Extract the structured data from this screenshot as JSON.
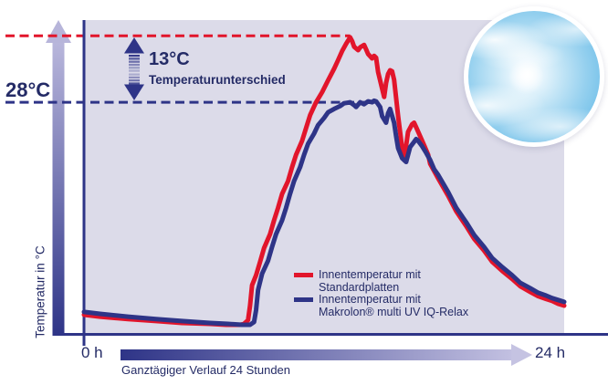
{
  "labels": {
    "y_axis_title": "Temperatur in °C",
    "x_start": "0 h",
    "x_end": "24 h",
    "x_axis_caption": "Ganztägiger Verlauf 24 Stunden",
    "ref_temp": "28°C",
    "diff_value": "13°C",
    "diff_caption": "Temperaturunterschied"
  },
  "legend": {
    "items": [
      {
        "color": "#e2152b",
        "line1": "Innentemperatur mit",
        "line2": "Standardplatten"
      },
      {
        "color": "#2e3487",
        "line1": "Innentemperatur mit",
        "line2": "Makrolon® multi UV IQ-Relax"
      }
    ]
  },
  "colors": {
    "red": "#e2152b",
    "navy": "#2e3487",
    "axis": "#2e3487",
    "plot_background": "#dcdbe9",
    "text": "#242b66",
    "arrow_gradient_dark": "#2e3487",
    "arrow_gradient_light": "#b9b7dc",
    "sky_blue": "#66b9e4"
  },
  "chart_data": {
    "type": "line",
    "title": "",
    "xlabel": "Ganztägiger Verlauf 24 Stunden",
    "ylabel": "Temperatur in °C",
    "x_unit": "hours",
    "x_range": [
      0,
      24
    ],
    "y_unit": "percent of plot height (schematic axis, no numeric scale shown)",
    "y_range": [
      0,
      100
    ],
    "grid": false,
    "legend_position": "inside lower right",
    "annotations": [
      {
        "text": "13°C Temperaturunterschied",
        "meaning": "difference between the two dashed reference lines (28°C vs. 41°C)"
      }
    ],
    "reference_lines": [
      {
        "label": "28°C",
        "temp_c": 28,
        "style": "dashed",
        "color": "#2e3487",
        "v": 73.8,
        "x_end_h": 14.6
      },
      {
        "label": "41°C (28°C + 13°C, unlabeled)",
        "temp_c": 41,
        "style": "dashed",
        "color": "#e2152b",
        "v": 95.0,
        "x_end_h": 13.3
      }
    ],
    "series": [
      {
        "name": "Innentemperatur mit Standardplatten",
        "color": "#e2152b",
        "peak_temp_c": 41,
        "points": [
          [
            0,
            6.1
          ],
          [
            0.8,
            5.5
          ],
          [
            2.2,
            4.7
          ],
          [
            3.6,
            4.1
          ],
          [
            4.9,
            3.5
          ],
          [
            6.3,
            3.2
          ],
          [
            7.1,
            2.9
          ],
          [
            7.8,
            2.9
          ],
          [
            8.0,
            3.2
          ],
          [
            8.2,
            4.4
          ],
          [
            8.3,
            9.0
          ],
          [
            8.4,
            15.5
          ],
          [
            8.6,
            18.7
          ],
          [
            8.8,
            23.0
          ],
          [
            9.0,
            27.4
          ],
          [
            9.3,
            31.8
          ],
          [
            9.5,
            36.2
          ],
          [
            9.7,
            40.2
          ],
          [
            9.9,
            44.6
          ],
          [
            10.2,
            48.7
          ],
          [
            10.4,
            53.1
          ],
          [
            10.6,
            57.1
          ],
          [
            10.9,
            61.5
          ],
          [
            11.1,
            65.6
          ],
          [
            11.3,
            69.7
          ],
          [
            11.6,
            73.8
          ],
          [
            11.9,
            77.0
          ],
          [
            12.2,
            80.8
          ],
          [
            12.5,
            84.5
          ],
          [
            12.7,
            87.2
          ],
          [
            12.9,
            90.1
          ],
          [
            13.1,
            92.4
          ],
          [
            13.3,
            94.5
          ],
          [
            13.4,
            93.3
          ],
          [
            13.5,
            91.5
          ],
          [
            13.7,
            90.4
          ],
          [
            13.8,
            91.3
          ],
          [
            14.0,
            92.1
          ],
          [
            14.1,
            90.7
          ],
          [
            14.2,
            89.2
          ],
          [
            14.4,
            87.8
          ],
          [
            14.5,
            88.6
          ],
          [
            14.6,
            88.0
          ],
          [
            14.7,
            83.4
          ],
          [
            14.9,
            78.1
          ],
          [
            15.0,
            75.5
          ],
          [
            15.1,
            79.9
          ],
          [
            15.2,
            82.8
          ],
          [
            15.3,
            84.0
          ],
          [
            15.4,
            83.7
          ],
          [
            15.5,
            81.0
          ],
          [
            15.6,
            75.2
          ],
          [
            15.7,
            69.4
          ],
          [
            15.9,
            59.2
          ],
          [
            16.0,
            55.4
          ],
          [
            16.1,
            60.1
          ],
          [
            16.2,
            64.4
          ],
          [
            16.4,
            66.8
          ],
          [
            16.5,
            67.3
          ],
          [
            16.6,
            65.9
          ],
          [
            16.8,
            63.0
          ],
          [
            17.0,
            60.1
          ],
          [
            17.2,
            57.1
          ],
          [
            17.3,
            54.2
          ],
          [
            17.7,
            49.6
          ],
          [
            18.2,
            44.0
          ],
          [
            18.6,
            39.1
          ],
          [
            19.1,
            34.4
          ],
          [
            19.5,
            30.3
          ],
          [
            20.0,
            26.5
          ],
          [
            20.4,
            23.0
          ],
          [
            20.9,
            20.1
          ],
          [
            21.4,
            17.5
          ],
          [
            21.8,
            15.2
          ],
          [
            22.3,
            13.4
          ],
          [
            22.7,
            12.0
          ],
          [
            23.1,
            11.1
          ],
          [
            23.4,
            10.5
          ],
          [
            23.7,
            9.6
          ],
          [
            24,
            9.0
          ]
        ]
      },
      {
        "name": "Innentemperatur mit Makrolon® multi UV IQ-Relax",
        "color": "#2e3487",
        "peak_temp_c": 28,
        "points": [
          [
            0,
            7.0
          ],
          [
            0.8,
            6.4
          ],
          [
            2.2,
            5.5
          ],
          [
            3.6,
            4.7
          ],
          [
            4.9,
            4.1
          ],
          [
            6.3,
            3.5
          ],
          [
            7.2,
            3.2
          ],
          [
            7.9,
            2.9
          ],
          [
            8.3,
            2.9
          ],
          [
            8.5,
            3.8
          ],
          [
            8.6,
            7.6
          ],
          [
            8.7,
            14.0
          ],
          [
            8.9,
            19.2
          ],
          [
            9.2,
            23.3
          ],
          [
            9.4,
            27.7
          ],
          [
            9.6,
            31.8
          ],
          [
            9.9,
            36.2
          ],
          [
            10.1,
            40.2
          ],
          [
            10.3,
            44.6
          ],
          [
            10.5,
            48.7
          ],
          [
            10.8,
            53.1
          ],
          [
            11.0,
            57.1
          ],
          [
            11.2,
            60.6
          ],
          [
            11.5,
            63.8
          ],
          [
            11.7,
            66.5
          ],
          [
            12.0,
            68.8
          ],
          [
            12.2,
            70.6
          ],
          [
            12.5,
            71.7
          ],
          [
            12.8,
            72.6
          ],
          [
            13.0,
            73.5
          ],
          [
            13.3,
            73.8
          ],
          [
            13.5,
            72.9
          ],
          [
            13.6,
            72.3
          ],
          [
            13.8,
            73.8
          ],
          [
            14.0,
            73.2
          ],
          [
            14.2,
            74.1
          ],
          [
            14.4,
            73.8
          ],
          [
            14.5,
            74.3
          ],
          [
            14.6,
            74.1
          ],
          [
            14.8,
            72.3
          ],
          [
            14.9,
            69.4
          ],
          [
            15.1,
            67.3
          ],
          [
            15.2,
            70.3
          ],
          [
            15.3,
            71.7
          ],
          [
            15.5,
            67.3
          ],
          [
            15.6,
            63.0
          ],
          [
            15.7,
            59.2
          ],
          [
            15.9,
            56.0
          ],
          [
            16.1,
            54.8
          ],
          [
            16.2,
            57.1
          ],
          [
            16.3,
            59.5
          ],
          [
            16.5,
            61.2
          ],
          [
            16.6,
            62.1
          ],
          [
            16.7,
            61.5
          ],
          [
            16.9,
            59.8
          ],
          [
            17.1,
            57.7
          ],
          [
            17.3,
            55.4
          ],
          [
            17.5,
            52.5
          ],
          [
            17.7,
            50.7
          ],
          [
            18.2,
            45.2
          ],
          [
            18.6,
            40.2
          ],
          [
            19.1,
            35.6
          ],
          [
            19.5,
            31.5
          ],
          [
            20.0,
            27.7
          ],
          [
            20.4,
            24.2
          ],
          [
            20.9,
            21.3
          ],
          [
            21.4,
            18.7
          ],
          [
            21.8,
            16.3
          ],
          [
            22.3,
            14.6
          ],
          [
            22.7,
            13.1
          ],
          [
            23.1,
            12.2
          ],
          [
            23.4,
            11.4
          ],
          [
            23.7,
            10.8
          ],
          [
            24,
            10.2
          ]
        ]
      }
    ]
  }
}
